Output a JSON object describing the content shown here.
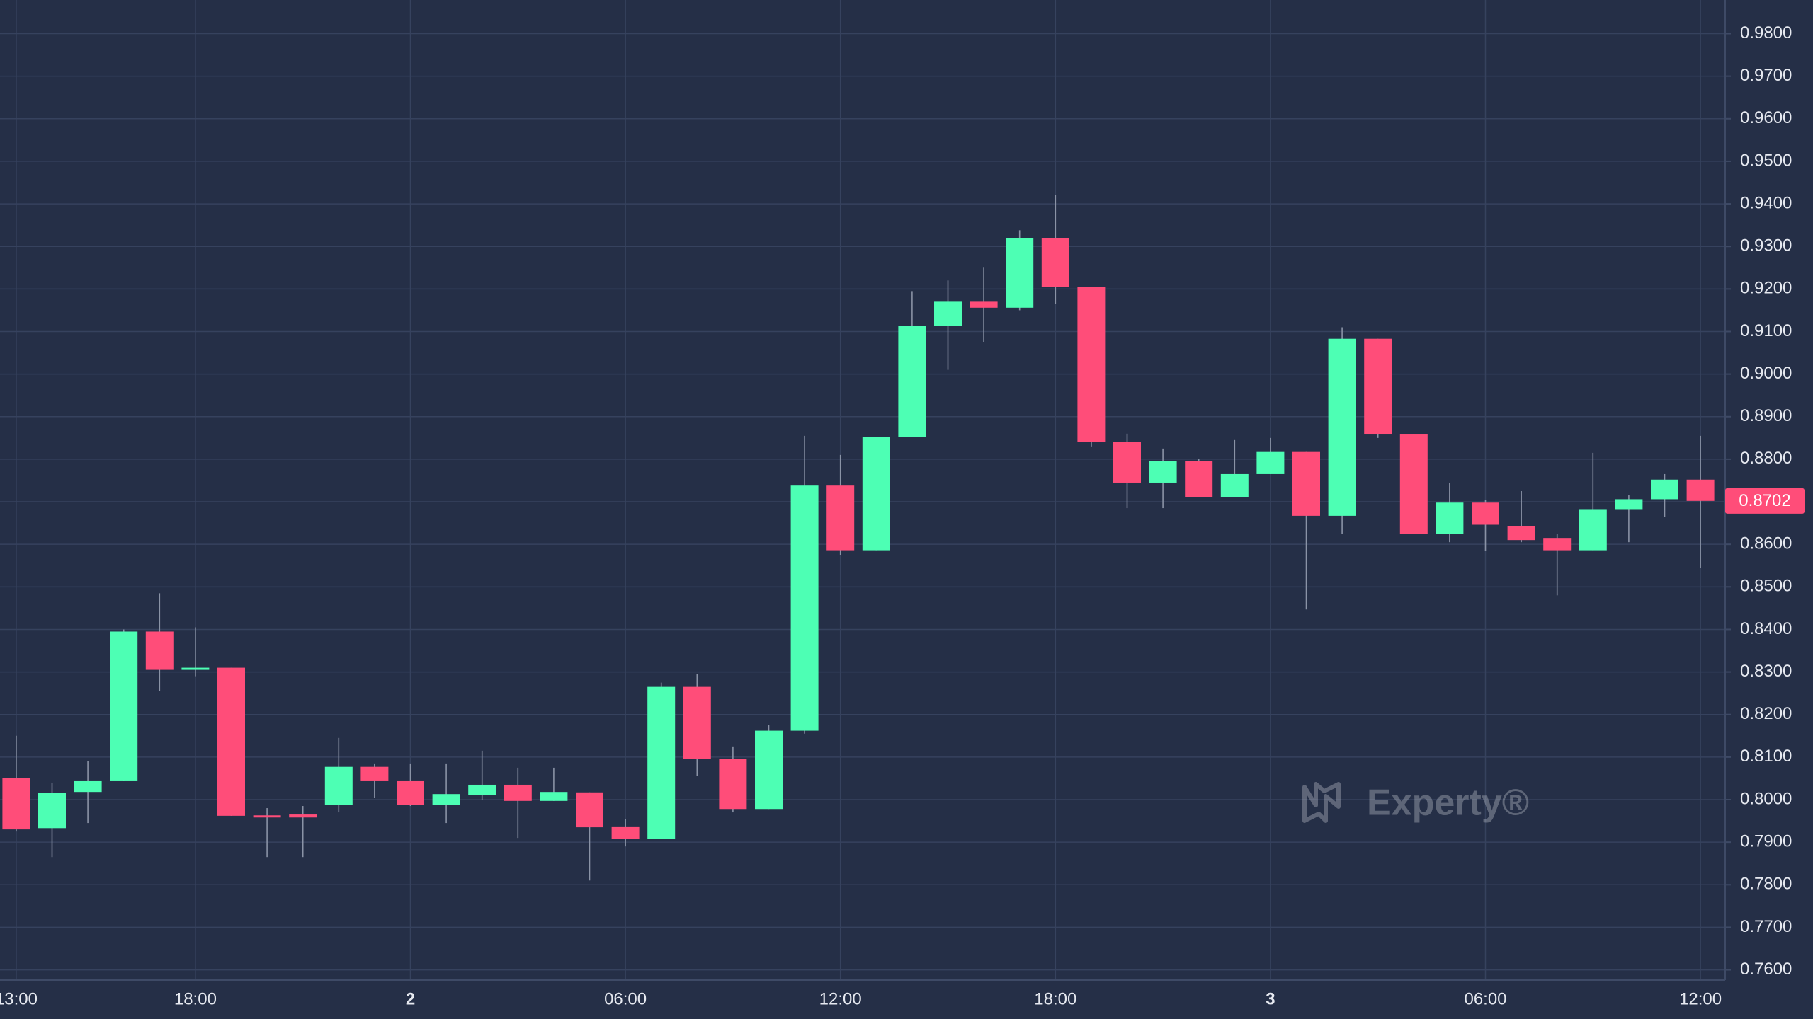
{
  "chart_data": {
    "type": "candlestick",
    "categories": [
      "13:00",
      null,
      null,
      null,
      null,
      "18:00",
      null,
      null,
      null,
      null,
      null,
      "2",
      null,
      null,
      null,
      null,
      null,
      "06:00",
      null,
      null,
      null,
      null,
      null,
      "12:00",
      null,
      null,
      null,
      null,
      null,
      "18:00",
      null,
      null,
      null,
      null,
      null,
      "3",
      null,
      null,
      null,
      null,
      null,
      "06:00",
      null,
      null,
      null,
      null,
      null,
      "12:00"
    ],
    "open": [
      0.805,
      0.7933,
      0.8018,
      0.8045,
      0.8395,
      0.8308,
      0.831,
      0.7963,
      0.7965,
      0.7987,
      0.8077,
      0.8045,
      0.7988,
      0.801,
      0.8035,
      0.7997,
      0.8017,
      0.7937,
      0.7907,
      0.8265,
      0.8095,
      0.7978,
      0.8162,
      0.8738,
      0.8586,
      0.8852,
      0.9113,
      0.917,
      0.9156,
      0.932,
      0.9205,
      0.884,
      0.8745,
      0.8795,
      0.8711,
      0.8765,
      0.8817,
      0.8667,
      0.9083,
      0.8858,
      0.8625,
      0.8698,
      0.8643,
      0.8615,
      0.8586,
      0.8681,
      0.8706,
      0.8752
    ],
    "high": [
      0.815,
      0.804,
      0.809,
      0.84,
      0.8485,
      0.8405,
      0.831,
      0.798,
      0.7985,
      0.8145,
      0.8085,
      0.8085,
      0.8085,
      0.8115,
      0.8075,
      0.8075,
      0.8017,
      0.7955,
      0.8275,
      0.8295,
      0.8125,
      0.8175,
      0.8855,
      0.881,
      0.8852,
      0.9195,
      0.922,
      0.925,
      0.9338,
      0.942,
      0.9205,
      0.886,
      0.8825,
      0.88,
      0.8845,
      0.885,
      0.8817,
      0.911,
      0.9083,
      0.8858,
      0.8745,
      0.8705,
      0.8725,
      0.8625,
      0.8815,
      0.8715,
      0.8765,
      0.8855
    ],
    "low": [
      0.7925,
      0.7865,
      0.7945,
      0.8045,
      0.8255,
      0.829,
      0.7962,
      0.7865,
      0.7865,
      0.797,
      0.8005,
      0.7985,
      0.7945,
      0.8,
      0.791,
      0.7997,
      0.781,
      0.789,
      0.7907,
      0.8055,
      0.797,
      0.7978,
      0.8155,
      0.8575,
      0.8586,
      0.8852,
      0.901,
      0.9075,
      0.915,
      0.9165,
      0.883,
      0.8685,
      0.8685,
      0.8711,
      0.8711,
      0.8765,
      0.8447,
      0.8625,
      0.885,
      0.8625,
      0.8605,
      0.8585,
      0.8605,
      0.848,
      0.8586,
      0.8605,
      0.8665,
      0.8545
    ],
    "close": [
      0.793,
      0.8015,
      0.8045,
      0.8395,
      0.8305,
      0.831,
      0.7962,
      0.7958,
      0.7958,
      0.8077,
      0.8045,
      0.7988,
      0.8013,
      0.8035,
      0.7997,
      0.8018,
      0.7935,
      0.7907,
      0.8265,
      0.8095,
      0.7978,
      0.8162,
      0.8738,
      0.8586,
      0.8852,
      0.9113,
      0.917,
      0.9156,
      0.932,
      0.9205,
      0.884,
      0.8745,
      0.8795,
      0.8711,
      0.8765,
      0.8817,
      0.8667,
      0.9083,
      0.8858,
      0.8625,
      0.8698,
      0.8646,
      0.861,
      0.8586,
      0.8681,
      0.8706,
      0.8752,
      0.8702
    ],
    "up_color": "#4dffb4",
    "down_color": "#ff4d79",
    "ylim": [
      0.7576,
      0.9879
    ],
    "yticks": [
      {
        "value": 0.76,
        "label": "0.7600"
      },
      {
        "value": 0.77,
        "label": "0.7700"
      },
      {
        "value": 0.78,
        "label": "0.7800"
      },
      {
        "value": 0.79,
        "label": "0.7900"
      },
      {
        "value": 0.8,
        "label": "0.8000"
      },
      {
        "value": 0.81,
        "label": "0.8100"
      },
      {
        "value": 0.82,
        "label": "0.8200"
      },
      {
        "value": 0.83,
        "label": "0.8300"
      },
      {
        "value": 0.84,
        "label": "0.8400"
      },
      {
        "value": 0.85,
        "label": "0.8500"
      },
      {
        "value": 0.86,
        "label": "0.8600"
      },
      {
        "value": 0.87,
        "label": "0.8700"
      },
      {
        "value": 0.88,
        "label": "0.8800"
      },
      {
        "value": 0.89,
        "label": "0.8900"
      },
      {
        "value": 0.9,
        "label": "0.9000"
      },
      {
        "value": 0.91,
        "label": "0.9100"
      },
      {
        "value": 0.92,
        "label": "0.9200"
      },
      {
        "value": 0.93,
        "label": "0.9300"
      },
      {
        "value": 0.94,
        "label": "0.9400"
      },
      {
        "value": 0.95,
        "label": "0.9500"
      },
      {
        "value": 0.96,
        "label": "0.9600"
      },
      {
        "value": 0.97,
        "label": "0.9700"
      },
      {
        "value": 0.98,
        "label": "0.9800"
      }
    ],
    "last_price": 0.8702,
    "grid": true,
    "watermark": "Experty®"
  }
}
